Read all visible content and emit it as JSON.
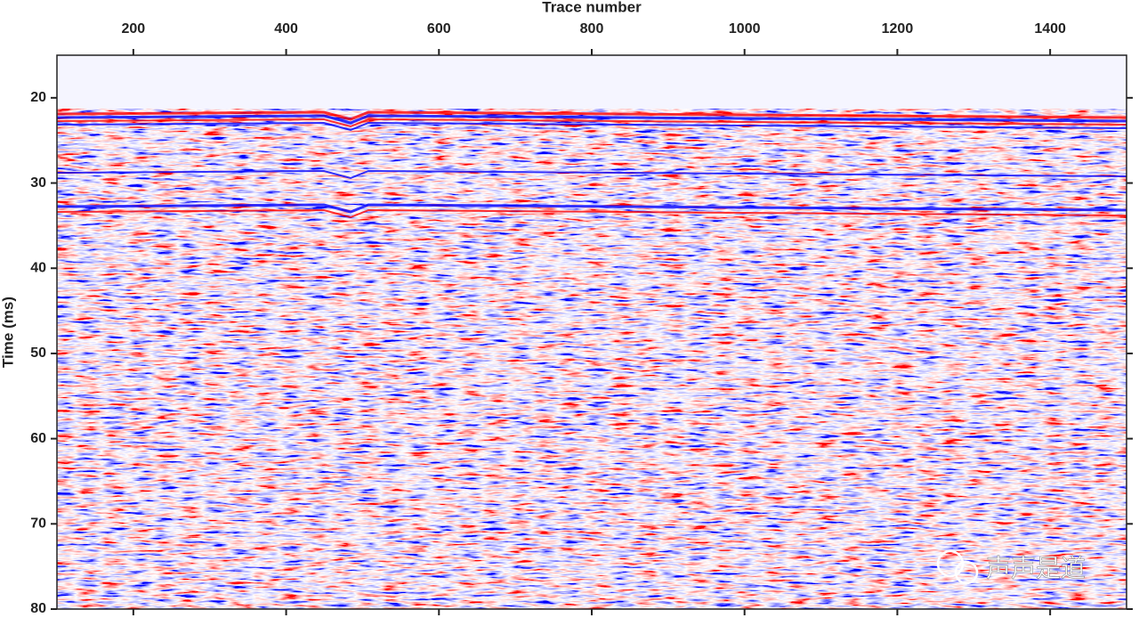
{
  "chart_data": {
    "type": "seismic",
    "xlabel": "Trace number",
    "ylabel": "Time (ms)",
    "xlim": [
      100,
      1500
    ],
    "xticks": [
      200,
      400,
      600,
      800,
      1000,
      1200,
      1400
    ],
    "ylim": [
      80,
      15
    ],
    "yticks": [
      20,
      30,
      40,
      50,
      60,
      70,
      80
    ],
    "colormap": [
      "#0000ff",
      "#ffffff",
      "#ff0000"
    ],
    "background": "#f5f5ff",
    "watermark": "声声是道"
  }
}
